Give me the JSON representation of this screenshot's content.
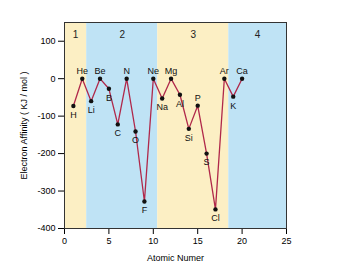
{
  "chart_data": {
    "type": "line",
    "x_label": "Atomic Numer",
    "y_label": "Electron Affinity ( KJ / mol )",
    "x": [
      1,
      2,
      3,
      4,
      5,
      6,
      7,
      8,
      9,
      10,
      11,
      12,
      13,
      14,
      15,
      16,
      17,
      18,
      19,
      20
    ],
    "values": [
      -73,
      0,
      -60,
      0,
      -27,
      -122,
      0,
      -141,
      -328,
      0,
      -53,
      0,
      -43,
      -134,
      -72,
      -200,
      -349,
      0,
      -48,
      0
    ],
    "point_labels": [
      "H",
      "He",
      "Li",
      "Be",
      "B",
      "C",
      "N",
      "O",
      "F",
      "Ne",
      "Na",
      "Mg",
      "Al",
      "Si",
      "P",
      "S",
      "Cl",
      "Ar",
      "K",
      "Ca"
    ],
    "color": "#b0284a",
    "marker": "circle",
    "xlim": [
      0,
      25
    ],
    "xticks": [
      0,
      5,
      10,
      15,
      20,
      25
    ],
    "ylim": [
      -400,
      150
    ],
    "yticks": [
      -400,
      -300,
      -200,
      -100,
      0,
      100
    ],
    "grid": false,
    "periods": [
      {
        "label": "1",
        "start": 0,
        "end": 2.5,
        "color": "#fcefc4"
      },
      {
        "label": "2",
        "start": 2.5,
        "end": 10.5,
        "color": "#bfe3f5"
      },
      {
        "label": "3",
        "start": 10.5,
        "end": 18.5,
        "color": "#fcefc4"
      },
      {
        "label": "4",
        "start": 18.5,
        "end": 25,
        "color": "#bfe3f5"
      }
    ]
  }
}
